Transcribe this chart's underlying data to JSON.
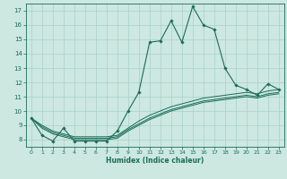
{
  "title": "",
  "xlabel": "Humidex (Indice chaleur)",
  "ylabel": "",
  "bg_color": "#cce8e0",
  "grid_color": "#a8d0c8",
  "line_color": "#1a6b5a",
  "xlim": [
    -0.5,
    23.5
  ],
  "ylim": [
    7.5,
    17.5
  ],
  "xticks": [
    0,
    1,
    2,
    3,
    4,
    5,
    6,
    7,
    8,
    9,
    10,
    11,
    12,
    13,
    14,
    15,
    16,
    17,
    18,
    19,
    20,
    21,
    22,
    23
  ],
  "yticks": [
    8,
    9,
    10,
    11,
    12,
    13,
    14,
    15,
    16,
    17
  ],
  "lines": [
    {
      "x": [
        0,
        1,
        2,
        3,
        4,
        5,
        6,
        7,
        8,
        9,
        10,
        11,
        12,
        13,
        14,
        15,
        16,
        17,
        18,
        19,
        20,
        21,
        22,
        23
      ],
      "y": [
        9.5,
        8.3,
        7.9,
        8.8,
        7.9,
        7.9,
        7.9,
        7.9,
        8.6,
        10.0,
        11.3,
        14.8,
        14.9,
        16.3,
        14.8,
        17.3,
        16.0,
        15.7,
        13.0,
        11.8,
        11.5,
        11.1,
        11.9,
        11.5
      ],
      "marker": true
    },
    {
      "x": [
        0,
        1,
        2,
        3,
        4,
        5,
        6,
        7,
        8,
        9,
        10,
        11,
        12,
        13,
        14,
        15,
        16,
        17,
        18,
        19,
        20,
        21,
        22,
        23
      ],
      "y": [
        9.5,
        9.0,
        8.6,
        8.4,
        8.2,
        8.2,
        8.2,
        8.2,
        8.3,
        8.8,
        9.3,
        9.7,
        10.0,
        10.3,
        10.5,
        10.7,
        10.9,
        11.0,
        11.1,
        11.2,
        11.3,
        11.2,
        11.4,
        11.5
      ],
      "marker": false
    },
    {
      "x": [
        0,
        1,
        2,
        3,
        4,
        5,
        6,
        7,
        8,
        9,
        10,
        11,
        12,
        13,
        14,
        15,
        16,
        17,
        18,
        19,
        20,
        21,
        22,
        23
      ],
      "y": [
        9.5,
        8.9,
        8.5,
        8.3,
        8.1,
        8.1,
        8.1,
        8.1,
        8.2,
        8.7,
        9.1,
        9.5,
        9.8,
        10.1,
        10.3,
        10.5,
        10.7,
        10.8,
        10.9,
        11.0,
        11.1,
        11.0,
        11.2,
        11.3
      ],
      "marker": false
    },
    {
      "x": [
        0,
        1,
        2,
        3,
        4,
        5,
        6,
        7,
        8,
        9,
        10,
        11,
        12,
        13,
        14,
        15,
        16,
        17,
        18,
        19,
        20,
        21,
        22,
        23
      ],
      "y": [
        9.5,
        8.8,
        8.4,
        8.2,
        8.0,
        8.0,
        8.0,
        8.0,
        8.1,
        8.6,
        9.0,
        9.4,
        9.7,
        10.0,
        10.2,
        10.4,
        10.6,
        10.7,
        10.8,
        10.9,
        11.0,
        10.9,
        11.1,
        11.2
      ],
      "marker": false
    }
  ]
}
